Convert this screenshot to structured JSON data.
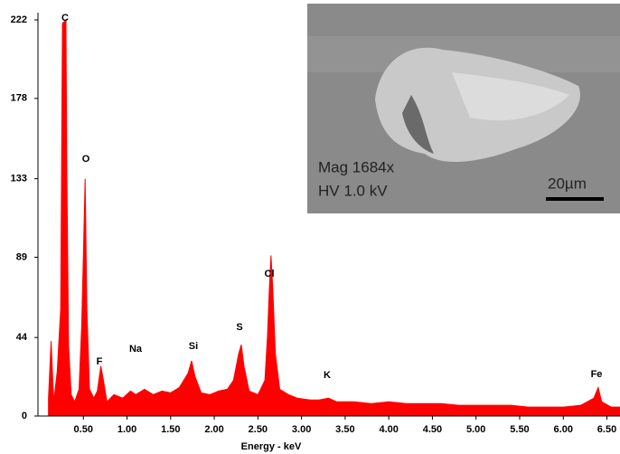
{
  "chart_data": {
    "type": "area",
    "x_label": "Energy - keV",
    "x": [
      0.1,
      0.13,
      0.16,
      0.2,
      0.24,
      0.26,
      0.3,
      0.31,
      0.33,
      0.36,
      0.4,
      0.45,
      0.48,
      0.5,
      0.52,
      0.54,
      0.57,
      0.62,
      0.66,
      0.7,
      0.73,
      0.77,
      0.85,
      0.95,
      1.04,
      1.1,
      1.2,
      1.3,
      1.4,
      1.5,
      1.6,
      1.7,
      1.74,
      1.78,
      1.85,
      1.95,
      2.05,
      2.15,
      2.22,
      2.28,
      2.31,
      2.34,
      2.4,
      2.5,
      2.58,
      2.61,
      2.63,
      2.65,
      2.67,
      2.7,
      2.75,
      2.85,
      2.95,
      3.1,
      3.2,
      3.31,
      3.4,
      3.6,
      3.8,
      4.0,
      4.2,
      4.4,
      4.6,
      4.8,
      5.0,
      5.2,
      5.4,
      5.6,
      5.8,
      6.0,
      6.2,
      6.35,
      6.4,
      6.44,
      6.55,
      6.65
    ],
    "values": [
      10,
      42,
      8,
      25,
      60,
      220,
      222,
      140,
      40,
      12,
      8,
      15,
      50,
      90,
      133,
      60,
      15,
      10,
      14,
      28,
      20,
      8,
      12,
      10,
      14,
      12,
      15,
      12,
      14,
      13,
      16,
      24,
      31,
      22,
      13,
      12,
      14,
      15,
      20,
      35,
      40,
      28,
      14,
      12,
      20,
      45,
      70,
      90,
      72,
      35,
      15,
      12,
      10,
      9,
      9,
      10,
      8,
      8,
      7,
      8,
      7,
      7,
      7,
      6,
      6,
      6,
      6,
      5,
      5,
      5,
      6,
      10,
      16,
      8,
      5,
      5
    ],
    "color": "#ff0000",
    "xlim": [
      0,
      6.65
    ],
    "ylim": [
      0,
      222
    ],
    "yticks": [
      0,
      44,
      89,
      133,
      178,
      222
    ],
    "xticks": [
      {
        "value": 0.5,
        "label": "0.50"
      },
      {
        "value": 1,
        "label": "1.00"
      },
      {
        "value": 1.5,
        "label": "1.50"
      },
      {
        "value": 2,
        "label": "2.00"
      },
      {
        "value": 2.5,
        "label": "2.50"
      },
      {
        "value": 3,
        "label": "3.00"
      },
      {
        "value": 3.5,
        "label": "3.50"
      },
      {
        "value": 4,
        "label": "4.00"
      },
      {
        "value": 4.5,
        "label": "4.50"
      },
      {
        "value": 5,
        "label": "5.00"
      },
      {
        "value": 5.5,
        "label": "5.50"
      },
      {
        "value": 6,
        "label": "6.00"
      },
      {
        "value": 6.5,
        "label": "6.50"
      }
    ],
    "annotations": [
      "C",
      "O",
      "F",
      "Na",
      "Si",
      "S",
      "Cl",
      "K",
      "Fe"
    ]
  },
  "inset": {
    "lines": [
      "Mag 1684x",
      "HV 1.0 kV"
    ],
    "scale_bar": "20µm"
  }
}
